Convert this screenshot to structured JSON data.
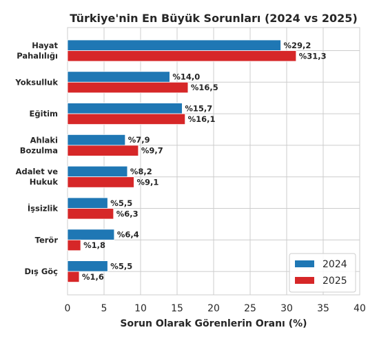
{
  "chart_data": {
    "type": "bar",
    "orientation": "horizontal",
    "title": "Türkiye'nin En Büyük Sorunları (2024 vs 2025)",
    "xlabel": "Sorun Olarak Görenlerin Oranı (%)",
    "ylabel": "",
    "xlim": [
      0,
      40
    ],
    "xticks": [
      0,
      5,
      10,
      15,
      20,
      25,
      30,
      35,
      40
    ],
    "grid": true,
    "legend_position": "bottom-right",
    "categories": [
      [
        "Hayat",
        "Pahalılığı"
      ],
      [
        "Yoksulluk"
      ],
      [
        "Eğitim"
      ],
      [
        "Ahlaki",
        "Bozulma"
      ],
      [
        "Adalet ve",
        "Hukuk"
      ],
      [
        "İşsizlik"
      ],
      [
        "Terör"
      ],
      [
        "Dış Göç"
      ]
    ],
    "series": [
      {
        "name": "2024",
        "color": "#1f77b4",
        "values": [
          29.2,
          14.0,
          15.7,
          7.9,
          8.2,
          5.5,
          6.4,
          5.5
        ],
        "labels": [
          "%29,2",
          "%14,0",
          "%15,7",
          "%7,9",
          "%8,2",
          "%5,5",
          "%6,4",
          "%5,5"
        ]
      },
      {
        "name": "2025",
        "color": "#d62728",
        "values": [
          31.3,
          16.5,
          16.1,
          9.7,
          9.1,
          6.3,
          1.8,
          1.6
        ],
        "labels": [
          "%31,3",
          "%16,5",
          "%16,1",
          "%9,7",
          "%9,1",
          "%6,3",
          "%1,8",
          "%1,6"
        ]
      }
    ]
  }
}
